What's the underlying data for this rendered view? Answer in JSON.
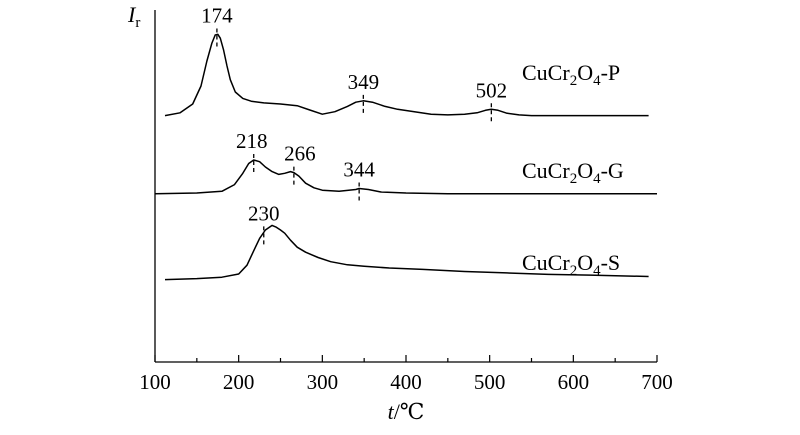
{
  "chart_data": {
    "type": "line",
    "title": "",
    "ylabel_main": "I",
    "ylabel_sub": "r",
    "xlabel_main": "t",
    "xlabel_unit": "/℃",
    "xlim": [
      100,
      700
    ],
    "ylim": [
      0,
      100
    ],
    "y_ticks_shown": false,
    "grid": false,
    "x_ticks": [
      100,
      200,
      300,
      400,
      500,
      600,
      700
    ],
    "series": [
      {
        "name": "CuCr2O4-P",
        "label_parts": [
          "CuCr",
          "2",
          "O",
          "4",
          "-P"
        ],
        "x": [
          112,
          130,
          145,
          155,
          162,
          168,
          172,
          175,
          178,
          182,
          186,
          190,
          196,
          205,
          215,
          230,
          250,
          270,
          285,
          300,
          315,
          330,
          340,
          349,
          360,
          375,
          390,
          410,
          430,
          450,
          470,
          485,
          495,
          502,
          510,
          520,
          535,
          550,
          580,
          620,
          650,
          690
        ],
        "y": [
          70.0,
          70.8,
          73.3,
          78.4,
          85.5,
          90.6,
          92.9,
          93.1,
          92.0,
          88.6,
          84.1,
          80.2,
          76.7,
          74.9,
          74.1,
          73.6,
          73.3,
          72.8,
          71.6,
          70.4,
          71.1,
          72.6,
          73.8,
          74.2,
          73.8,
          72.6,
          71.8,
          71.1,
          70.4,
          70.2,
          70.4,
          70.8,
          71.5,
          71.8,
          71.5,
          70.7,
          70.2,
          70.0,
          70.0,
          70.0,
          70.0,
          70.0
        ]
      },
      {
        "name": "CuCr2O4-G",
        "label_parts": [
          "CuCr",
          "2",
          "O",
          "4",
          "-G"
        ],
        "x": [
          100,
          150,
          180,
          195,
          205,
          212,
          218,
          225,
          232,
          240,
          248,
          255,
          262,
          266,
          272,
          280,
          290,
          300,
          320,
          340,
          344,
          355,
          370,
          400,
          450,
          500,
          600,
          700
        ],
        "y": [
          47.8,
          48.0,
          48.5,
          50.4,
          53.6,
          56.4,
          57.4,
          56.9,
          55.4,
          54.1,
          53.3,
          53.6,
          54.1,
          53.8,
          52.8,
          50.8,
          49.5,
          48.8,
          48.5,
          49.0,
          49.3,
          49.0,
          48.3,
          48.0,
          47.8,
          47.8,
          47.8,
          47.8
        ]
      },
      {
        "name": "CuCr2O4-S",
        "label_parts": [
          "CuCr",
          "2",
          "O",
          "4",
          "-S"
        ],
        "x": [
          112,
          150,
          180,
          200,
          210,
          218,
          225,
          232,
          240,
          245,
          250,
          255,
          262,
          270,
          280,
          295,
          310,
          330,
          350,
          380,
          420,
          470,
          520,
          570,
          620,
          690
        ],
        "y": [
          23.4,
          23.7,
          24.1,
          25.0,
          27.5,
          31.6,
          35.1,
          37.5,
          38.8,
          38.3,
          37.5,
          36.6,
          34.6,
          32.6,
          31.2,
          29.7,
          28.5,
          27.6,
          27.2,
          26.7,
          26.3,
          25.7,
          25.3,
          24.9,
          24.7,
          24.3
        ]
      }
    ],
    "peaks": [
      {
        "series": 0,
        "label": "174",
        "x": 174
      },
      {
        "series": 0,
        "label": "349",
        "x": 349
      },
      {
        "series": 0,
        "label": "502",
        "x": 502
      },
      {
        "series": 1,
        "label": "218",
        "x": 218
      },
      {
        "series": 1,
        "label": "266",
        "x": 266
      },
      {
        "series": 1,
        "label": "344",
        "x": 344
      },
      {
        "series": 2,
        "label": "230",
        "x": 230
      }
    ]
  }
}
